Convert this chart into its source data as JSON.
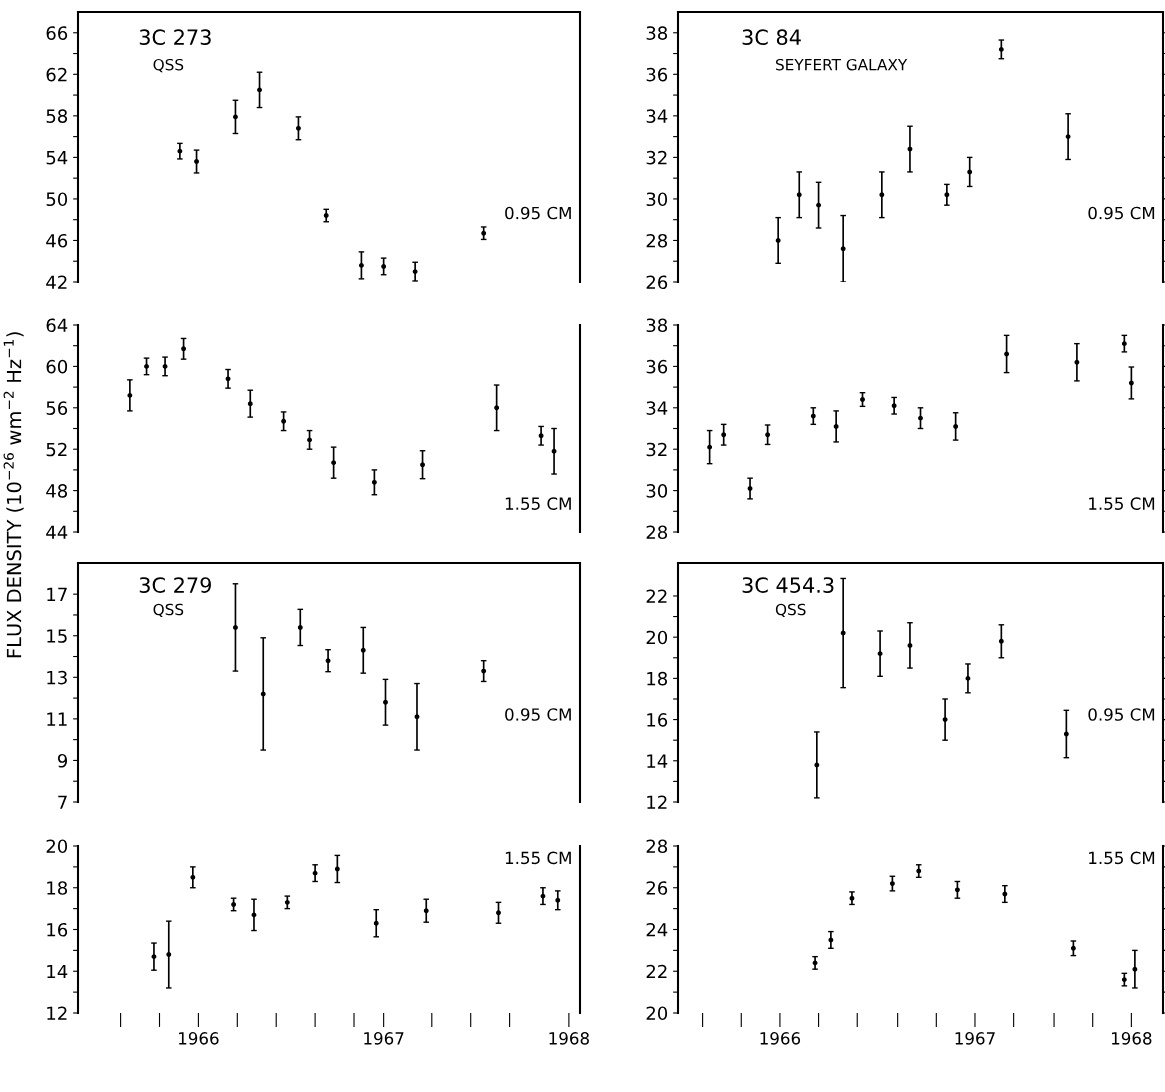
{
  "chart_data": [
    {
      "type": "scatter",
      "title": "3C 273",
      "subtitle": "QSS",
      "annotations": [
        "0.95 CM"
      ],
      "marker": "circle",
      "tick_labels": "y",
      "xlim": [
        1965.35,
        1968.06
      ],
      "ylim": [
        42,
        68
      ],
      "yticks": [
        42,
        {
          "value": 44,
          "label": null
        },
        46,
        {
          "value": 48,
          "label": null
        },
        50,
        {
          "value": 52,
          "label": null
        },
        54,
        {
          "value": 56,
          "label": null
        },
        58,
        {
          "value": 60,
          "label": null
        },
        62,
        {
          "value": 64,
          "label": null
        },
        66
      ],
      "series": [
        {
          "color": "#000000",
          "x": [
            1965.9,
            1965.99,
            1966.2,
            1966.33,
            1966.54,
            1966.69,
            1966.88,
            1967.0,
            1967.17,
            1967.54
          ],
          "values": [
            54.6,
            53.6,
            57.9,
            60.5,
            56.8,
            48.4,
            43.6,
            43.5,
            43.0,
            46.7
          ],
          "errors": [
            0.75,
            1.1,
            1.6,
            1.7,
            1.1,
            0.6,
            1.3,
            0.8,
            0.9,
            0.6
          ]
        }
      ]
    },
    {
      "type": "scatter",
      "title": "3C 84",
      "subtitle": "SEYFERT GALAXY",
      "annotations": [
        "0.95 CM"
      ],
      "marker": "circle",
      "tick_labels": "y",
      "xlim": [
        1965.42,
        1968.18
      ],
      "ylim": [
        26,
        39
      ],
      "yticks": [
        26,
        {
          "value": 27,
          "label": null
        },
        28,
        {
          "value": 29,
          "label": null
        },
        30,
        {
          "value": 31,
          "label": null
        },
        32,
        {
          "value": 33,
          "label": null
        },
        34,
        {
          "value": 35,
          "label": null
        },
        36,
        {
          "value": 37,
          "label": null
        },
        38
      ],
      "series": [
        {
          "color": "#000000",
          "x": [
            1965.99,
            1966.11,
            1966.22,
            1966.36,
            1966.58,
            1966.74,
            1966.95,
            1967.08,
            1967.26,
            1967.64
          ],
          "values": [
            28.0,
            30.2,
            29.7,
            27.6,
            30.2,
            32.4,
            30.2,
            31.3,
            37.2,
            33.0
          ],
          "errors": [
            1.1,
            1.1,
            1.1,
            1.6,
            1.1,
            1.1,
            0.5,
            0.7,
            0.45,
            1.1
          ]
        }
      ]
    },
    {
      "type": "scatter",
      "ylabel": "FLUX DENSITY (10$^{−26}$ wm$^{−2}$ Hz$^{−1}$)",
      "annotations": [
        "1.55 CM"
      ],
      "marker": "circle",
      "tick_labels": "y",
      "xlim": [
        1965.35,
        1968.06
      ],
      "ylim": [
        44,
        64
      ],
      "yticks": [
        44,
        {
          "value": 46,
          "label": null
        },
        48,
        {
          "value": 50,
          "label": null
        },
        52,
        {
          "value": 54,
          "label": null
        },
        56,
        {
          "value": 58,
          "label": null
        },
        60,
        {
          "value": 62,
          "label": null
        },
        64
      ],
      "series": [
        {
          "color": "#000000",
          "x": [
            1965.63,
            1965.72,
            1965.82,
            1965.92,
            1966.16,
            1966.28,
            1966.46,
            1966.6,
            1966.73,
            1966.95,
            1967.21,
            1967.61,
            1967.85,
            1967.92
          ],
          "values": [
            57.2,
            60.0,
            60.0,
            61.7,
            58.8,
            56.4,
            54.7,
            52.9,
            50.7,
            48.8,
            50.5,
            56.0,
            53.3,
            51.8
          ],
          "errors": [
            1.5,
            0.8,
            0.9,
            1.0,
            0.9,
            1.3,
            0.9,
            0.9,
            1.5,
            1.2,
            1.35,
            2.2,
            0.9,
            2.2
          ]
        }
      ]
    },
    {
      "type": "scatter",
      "annotations": [
        "1.55 CM"
      ],
      "marker": "circle",
      "tick_labels": "y",
      "xlim": [
        1965.42,
        1968.18
      ],
      "ylim": [
        28,
        38
      ],
      "yticks": [
        28,
        {
          "value": 29,
          "label": null
        },
        30,
        {
          "value": 31,
          "label": null
        },
        32,
        {
          "value": 33,
          "label": null
        },
        34,
        {
          "value": 35,
          "label": null
        },
        36,
        {
          "value": 37,
          "label": null
        },
        38
      ],
      "series": [
        {
          "color": "#000000",
          "x": [
            1965.6,
            1965.68,
            1965.83,
            1965.93,
            1966.19,
            1966.32,
            1966.47,
            1966.65,
            1966.8,
            1967.0,
            1967.29,
            1967.69,
            1967.96,
            1968.0
          ],
          "values": [
            32.1,
            32.7,
            30.1,
            32.7,
            33.6,
            33.1,
            34.4,
            34.1,
            33.5,
            33.1,
            36.6,
            36.2,
            37.1,
            35.2
          ],
          "errors": [
            0.8,
            0.5,
            0.5,
            0.47,
            0.4,
            0.75,
            0.33,
            0.4,
            0.5,
            0.66,
            0.9,
            0.9,
            0.4,
            0.77
          ]
        }
      ]
    },
    {
      "type": "scatter",
      "title": "3C 279",
      "subtitle": "QSS",
      "annotations": [
        "0.95 CM"
      ],
      "marker": "circle",
      "tick_labels": "y",
      "xlim": [
        1965.35,
        1968.06
      ],
      "ylim": [
        7,
        18.5
      ],
      "yticks": [
        7,
        {
          "value": 8,
          "label": null
        },
        9,
        {
          "value": 10,
          "label": null
        },
        11,
        {
          "value": 12,
          "label": null
        },
        13,
        {
          "value": 14,
          "label": null
        },
        15,
        {
          "value": 16,
          "label": null
        },
        17
      ],
      "series": [
        {
          "color": "#000000",
          "x": [
            1966.2,
            1966.35,
            1966.55,
            1966.7,
            1966.89,
            1967.01,
            1967.18,
            1967.54
          ],
          "values": [
            15.4,
            12.2,
            15.4,
            13.8,
            14.3,
            11.8,
            11.1,
            13.3
          ],
          "errors": [
            2.1,
            2.7,
            0.87,
            0.53,
            1.1,
            1.1,
            1.6,
            0.5
          ]
        }
      ]
    },
    {
      "type": "scatter",
      "title": "3C 454.3",
      "subtitle": "QSS",
      "annotations": [
        "0.95 CM"
      ],
      "marker": "circle",
      "tick_labels": "y",
      "xlim": [
        1965.42,
        1968.18
      ],
      "ylim": [
        12,
        23.6
      ],
      "yticks": [
        12,
        {
          "value": 13,
          "label": null
        },
        14,
        {
          "value": 15,
          "label": null
        },
        16,
        {
          "value": 17,
          "label": null
        },
        18,
        {
          "value": 19,
          "label": null
        },
        20,
        {
          "value": 21,
          "label": null
        },
        22
      ],
      "series": [
        {
          "color": "#000000",
          "x": [
            1966.21,
            1966.36,
            1966.57,
            1966.74,
            1966.94,
            1967.07,
            1967.26,
            1967.63
          ],
          "values": [
            13.8,
            20.2,
            19.2,
            19.6,
            16.0,
            18.0,
            19.8,
            15.3
          ],
          "errors": [
            1.6,
            2.65,
            1.1,
            1.1,
            1.0,
            0.7,
            0.8,
            1.15
          ]
        }
      ]
    },
    {
      "type": "scatter",
      "annotations": [
        "1.55 CM"
      ],
      "marker": "circle",
      "xlim": [
        1965.35,
        1968.06
      ],
      "ylim": [
        12,
        20
      ],
      "yticks": [
        12,
        {
          "value": 13,
          "label": null
        },
        14,
        {
          "value": 15,
          "label": null
        },
        16,
        {
          "value": 17,
          "label": null
        },
        18,
        {
          "value": 19,
          "label": null
        },
        20
      ],
      "xticks": [
        {
          "value": 1965.58,
          "label": null
        },
        {
          "value": 1965.79,
          "label": null
        },
        {
          "value": 1966,
          "label": "1966"
        },
        {
          "value": 1966.21,
          "label": null
        },
        {
          "value": 1966.42,
          "label": null
        },
        {
          "value": 1966.63,
          "label": null
        },
        {
          "value": 1966.84,
          "label": null
        },
        {
          "value": 1967,
          "label": "1967"
        },
        {
          "value": 1967.26,
          "label": null
        },
        {
          "value": 1967.47,
          "label": null
        },
        {
          "value": 1967.68,
          "label": null
        },
        {
          "value": 1968,
          "label": "1968"
        }
      ],
      "series": [
        {
          "color": "#000000",
          "x": [
            1965.76,
            1965.84,
            1965.97,
            1966.19,
            1966.3,
            1966.48,
            1966.63,
            1966.75,
            1966.96,
            1967.23,
            1967.62,
            1967.86,
            1967.94
          ],
          "values": [
            14.7,
            14.8,
            18.5,
            17.2,
            16.7,
            17.3,
            18.7,
            18.9,
            16.3,
            16.9,
            16.8,
            17.6,
            17.4
          ],
          "errors": [
            0.65,
            1.6,
            0.5,
            0.3,
            0.75,
            0.3,
            0.4,
            0.65,
            0.65,
            0.55,
            0.5,
            0.4,
            0.45
          ]
        }
      ]
    },
    {
      "type": "scatter",
      "annotations": [
        "1.55 CM"
      ],
      "marker": "circle",
      "xlim": [
        1965.42,
        1968.18
      ],
      "ylim": [
        20,
        28
      ],
      "yticks": [
        20,
        {
          "value": 21,
          "label": null
        },
        22,
        {
          "value": 23,
          "label": null
        },
        24,
        {
          "value": 25,
          "label": null
        },
        26,
        {
          "value": 27,
          "label": null
        },
        28
      ],
      "xticks": [
        {
          "value": 1965.56,
          "label": null
        },
        {
          "value": 1965.78,
          "label": null
        },
        {
          "value": 1966,
          "label": "1966"
        },
        {
          "value": 1966.22,
          "label": null
        },
        {
          "value": 1966.44,
          "label": null
        },
        {
          "value": 1966.67,
          "label": null
        },
        {
          "value": 1966.89,
          "label": null
        },
        {
          "value": 1967.11,
          "label": "1967"
        },
        {
          "value": 1967.33,
          "label": null
        },
        {
          "value": 1967.56,
          "label": null
        },
        {
          "value": 1967.78,
          "label": null
        },
        {
          "value": 1968,
          "label": "1968"
        }
      ],
      "series": [
        {
          "color": "#000000",
          "x": [
            1966.2,
            1966.29,
            1966.41,
            1966.64,
            1966.79,
            1967.01,
            1967.28,
            1967.67,
            1967.96,
            1968.02
          ],
          "values": [
            22.4,
            23.5,
            25.5,
            26.2,
            26.8,
            25.9,
            25.7,
            23.1,
            21.6,
            22.1
          ],
          "errors": [
            0.3,
            0.4,
            0.3,
            0.35,
            0.3,
            0.4,
            0.4,
            0.35,
            0.3,
            0.9
          ]
        }
      ]
    }
  ]
}
